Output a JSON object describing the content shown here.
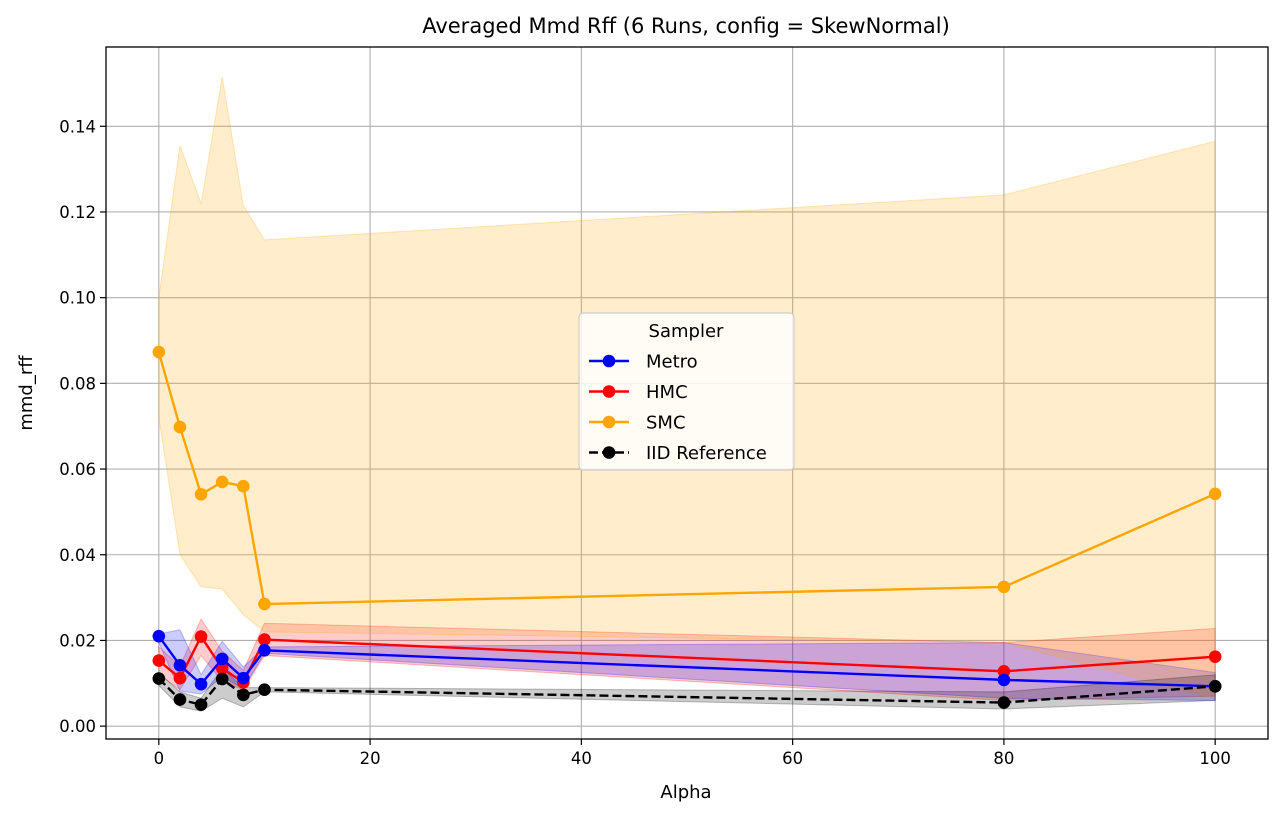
{
  "chart_data": {
    "type": "line",
    "title": "Averaged Mmd Rff (6 Runs, config = SkewNormal)",
    "xlabel": "Alpha",
    "ylabel": "mmd_rff",
    "xlim": [
      -5,
      105
    ],
    "ylim": [
      -0.003,
      0.1585
    ],
    "xticks": [
      0,
      20,
      40,
      60,
      80,
      100
    ],
    "xtick_labels": [
      "0",
      "20",
      "40",
      "60",
      "80",
      "100"
    ],
    "yticks": [
      0.0,
      0.02,
      0.04,
      0.06,
      0.08,
      0.1,
      0.12,
      0.14
    ],
    "ytick_labels": [
      "0.00",
      "0.02",
      "0.04",
      "0.06",
      "0.08",
      "0.10",
      "0.12",
      "0.14"
    ],
    "grid": true,
    "legend": {
      "title": "Sampler",
      "placement": "center"
    },
    "x": [
      0,
      2,
      4,
      6,
      8,
      10,
      80,
      100
    ],
    "series": [
      {
        "name": "HMC",
        "color": "#ff0000",
        "linestyle": "solid",
        "values": [
          0.0153,
          0.0112,
          0.0209,
          0.0135,
          0.0102,
          0.0202,
          0.0128,
          0.0162
        ],
        "band_lower": [
          0.012,
          0.0085,
          0.0165,
          0.0105,
          0.0085,
          0.0165,
          0.006,
          0.007
        ],
        "band_upper": [
          0.0185,
          0.014,
          0.025,
          0.0175,
          0.013,
          0.024,
          0.0195,
          0.0228
        ]
      },
      {
        "name": "Metro",
        "color": "#0000ff",
        "linestyle": "solid",
        "values": [
          0.021,
          0.0142,
          0.0098,
          0.0157,
          0.0112,
          0.0177,
          0.0108,
          0.0093
        ],
        "band_lower": [
          0.0195,
          0.0082,
          0.0075,
          0.0115,
          0.0088,
          0.017,
          0.0065,
          0.006
        ],
        "band_upper": [
          0.0215,
          0.0225,
          0.012,
          0.0198,
          0.0138,
          0.0185,
          0.0195,
          0.0125
        ]
      },
      {
        "name": "SMC",
        "color": "#ffa500",
        "linestyle": "solid",
        "values": [
          0.0873,
          0.0698,
          0.0541,
          0.057,
          0.056,
          0.0285,
          0.0325,
          0.0542
        ],
        "band_lower": [
          0.072,
          0.04,
          0.0325,
          0.032,
          0.026,
          0.022,
          0.0195,
          0.0065
        ],
        "band_upper": [
          0.1,
          0.1355,
          0.122,
          0.1515,
          0.1215,
          0.1135,
          0.124,
          0.1365
        ]
      },
      {
        "name": "IID Reference",
        "color": "#000000",
        "linestyle": "dashed",
        "values": [
          0.0111,
          0.0062,
          0.005,
          0.011,
          0.0073,
          0.0085,
          0.0055,
          0.0093
        ],
        "band_lower": [
          0.0095,
          0.0045,
          0.0035,
          0.0065,
          0.0045,
          0.008,
          0.004,
          0.006
        ],
        "band_upper": [
          0.0125,
          0.008,
          0.0065,
          0.0135,
          0.009,
          0.009,
          0.008,
          0.012
        ]
      }
    ],
    "legend_order": [
      "Metro",
      "HMC",
      "SMC",
      "IID Reference"
    ],
    "draw_order": [
      "HMC",
      "Metro",
      "SMC",
      "IID Reference"
    ]
  }
}
